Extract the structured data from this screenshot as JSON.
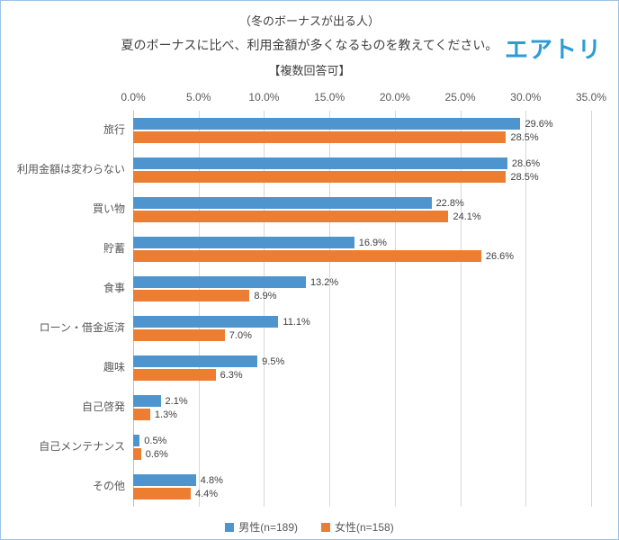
{
  "header": {
    "title_line1": "（冬のボーナスが出る人）",
    "title_line2": "夏のボーナスに比べ、利用金額が多くなるものを教えてください。",
    "title_line3": "【複数回答可】",
    "logo_text": "エアトリ",
    "logo_color": "#2B9CD8"
  },
  "chart_data": {
    "type": "bar",
    "orientation": "horizontal",
    "title": "夏のボーナスに比べ、利用金額が多くなるものを教えてください。",
    "categories": [
      "旅行",
      "利用金額は変わらない",
      "買い物",
      "貯蓄",
      "食事",
      "ローン・借金返済",
      "趣味",
      "自己啓発",
      "自己メンテナンス",
      "その他"
    ],
    "series": [
      {
        "name": "男性(n=189)",
        "color": "#4E95D0",
        "values": [
          29.6,
          28.6,
          22.8,
          16.9,
          13.2,
          11.1,
          9.5,
          2.1,
          0.5,
          4.8
        ]
      },
      {
        "name": "女性(n=158)",
        "color": "#ED7D31",
        "values": [
          28.5,
          28.5,
          24.1,
          26.6,
          8.9,
          7.0,
          6.3,
          1.3,
          0.6,
          4.4
        ]
      }
    ],
    "x_ticks": [
      "0.0%",
      "5.0%",
      "10.0%",
      "15.0%",
      "20.0%",
      "25.0%",
      "30.0%",
      "35.0%"
    ],
    "xlim": [
      0,
      35
    ],
    "value_suffix": "%",
    "grid": true,
    "legend_position": "bottom"
  }
}
